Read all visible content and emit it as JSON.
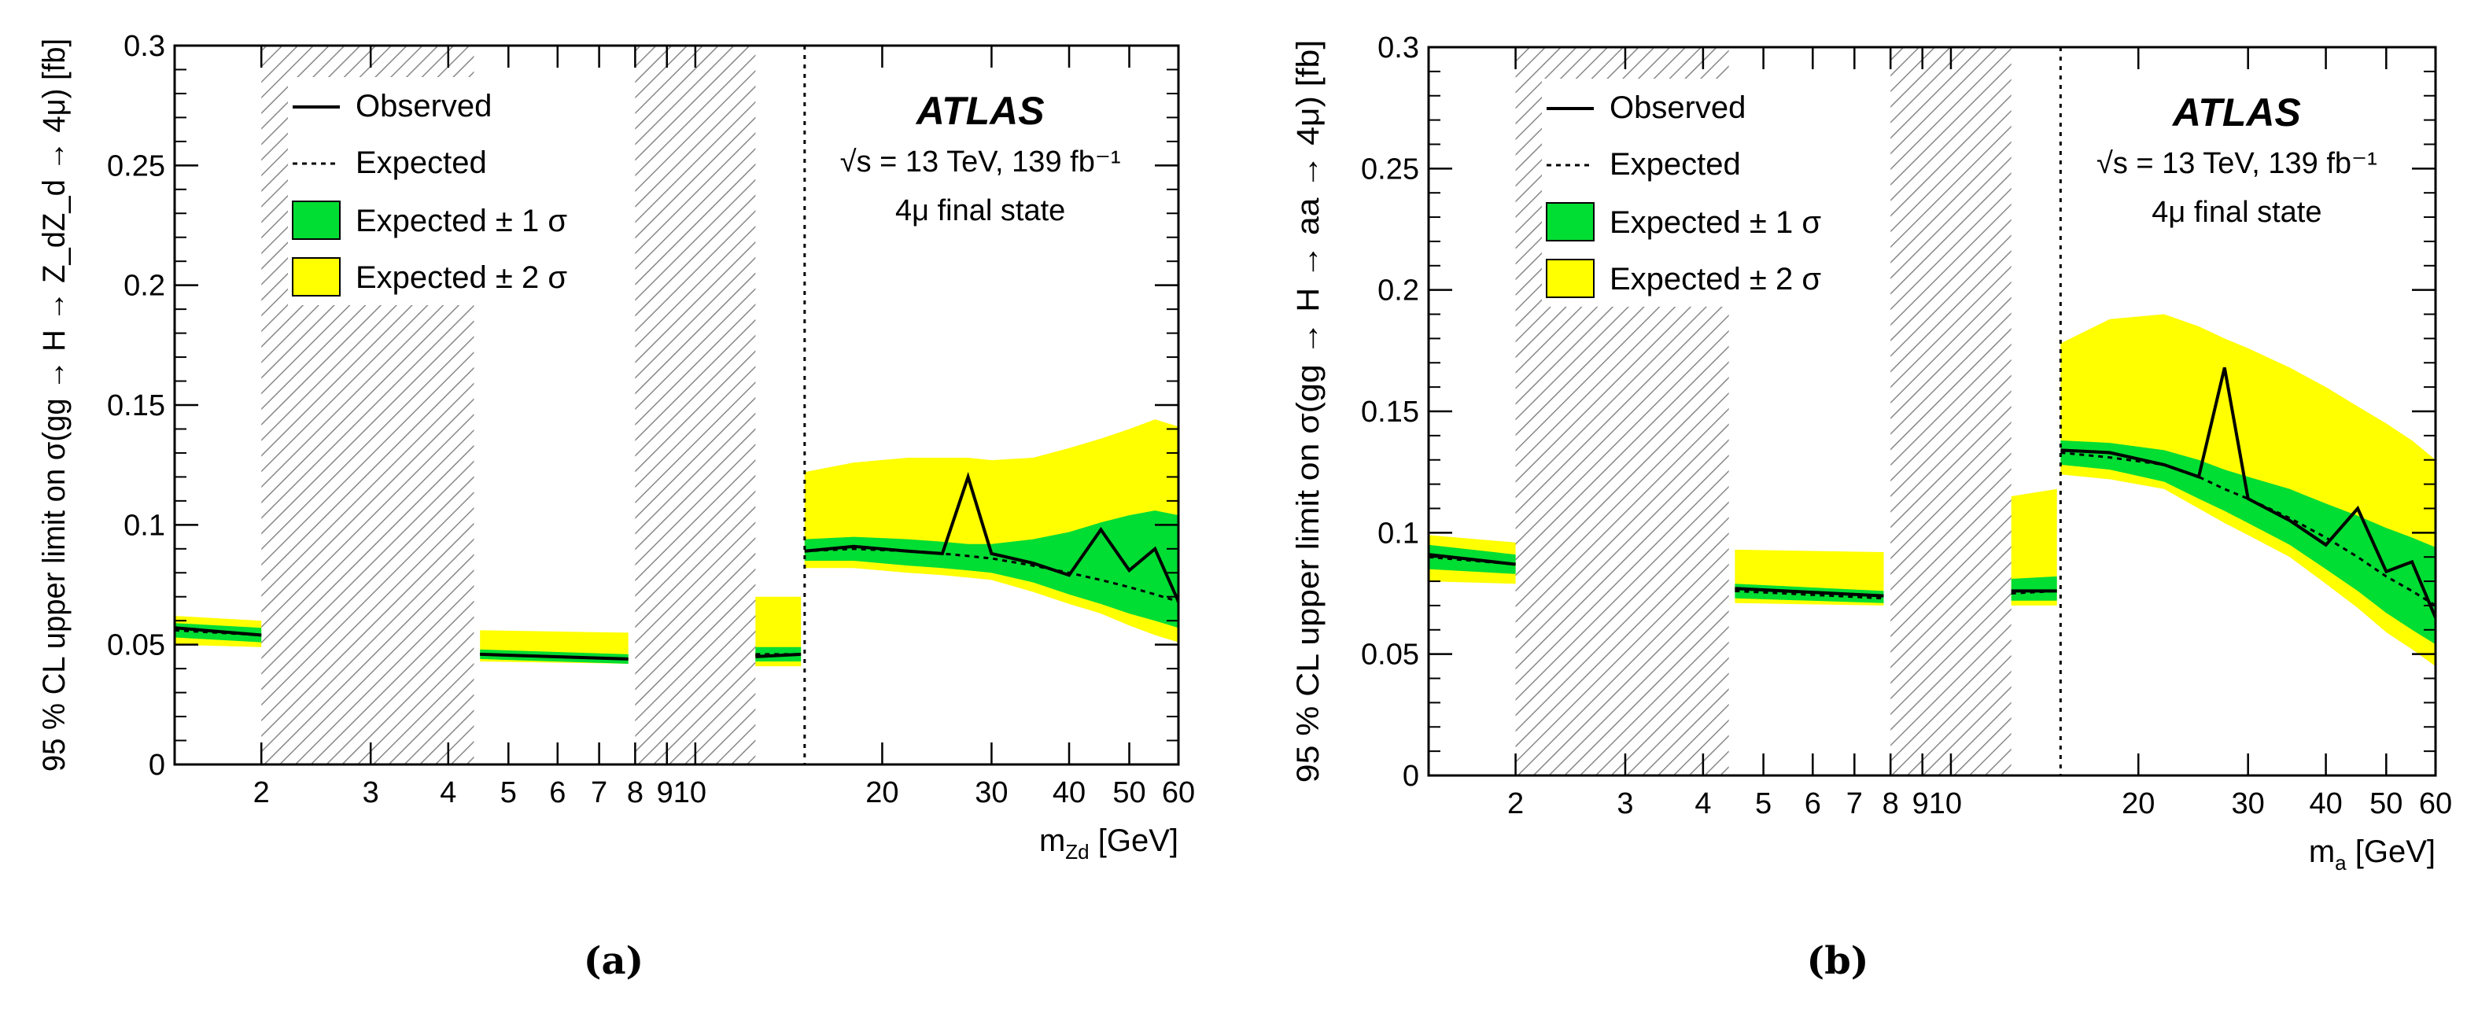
{
  "colors": {
    "band1": "#00dd33",
    "band2": "#ffff00",
    "line": "#000000",
    "hatch": "#888888"
  },
  "chart_data": [
    {
      "id": "a",
      "type": "line",
      "caption": "(a)",
      "ylabel": "95 % CL upper limit on σ(gg → H → Z_dZ_d → 4μ) [fb]",
      "xlabel": "m_Z_d [GeV]",
      "xscale": "log",
      "xlim": [
        1.45,
        60
      ],
      "ylim": [
        0,
        0.3
      ],
      "yticks": [
        0,
        0.05,
        0.1,
        0.15,
        0.2,
        0.25,
        0.3
      ],
      "ytick_labels": [
        "0",
        "0.05",
        "0.1",
        "0.15",
        "0.2",
        "0.25",
        "0.3"
      ],
      "xtick_labels": [
        {
          "v": 2,
          "t": "2"
        },
        {
          "v": 3,
          "t": "3"
        },
        {
          "v": 4,
          "t": "4"
        },
        {
          "v": 5,
          "t": "5"
        },
        {
          "v": 6,
          "t": "6"
        },
        {
          "v": 7,
          "t": "7"
        },
        {
          "v": 8,
          "t": "8"
        },
        {
          "v": 9.5,
          "t": "910"
        },
        {
          "v": 20,
          "t": "20"
        },
        {
          "v": 30,
          "t": "30"
        },
        {
          "v": 40,
          "t": "40"
        },
        {
          "v": 50,
          "t": "50"
        },
        {
          "v": 60,
          "t": "60"
        }
      ],
      "xticks_major": [
        2,
        3,
        4,
        5,
        6,
        7,
        8,
        9,
        10,
        20,
        30,
        40,
        50,
        60
      ],
      "excluded_regions": [
        [
          2,
          4.4
        ],
        [
          8,
          12.5
        ]
      ],
      "divider_x": 15,
      "legend": {
        "observed": "Observed",
        "expected": "Expected",
        "band1": "Expected ± 1 σ",
        "band2": "Expected ± 2 σ"
      },
      "annotation": {
        "experiment": "ATLAS",
        "energy": "√s = 13 TeV, 139 fb⁻¹",
        "final_state": "4μ final state"
      },
      "segments": [
        {
          "x": [
            1.45,
            2.0
          ],
          "exp": [
            0.056,
            0.054
          ],
          "obs": [
            0.057,
            0.054
          ],
          "s1": [
            [
              0.053,
              0.059
            ],
            [
              0.051,
              0.057
            ]
          ],
          "s2": [
            [
              0.05,
              0.062
            ],
            [
              0.049,
              0.06
            ]
          ]
        },
        {
          "x": [
            4.5,
            7.8
          ],
          "exp": [
            0.046,
            0.044
          ],
          "obs": [
            0.046,
            0.044
          ],
          "s1": [
            [
              0.044,
              0.048
            ],
            [
              0.042,
              0.046
            ]
          ],
          "s2": [
            [
              0.043,
              0.056
            ],
            [
              0.042,
              0.055
            ]
          ]
        },
        {
          "x": [
            12.5,
            14.8
          ],
          "exp": [
            0.046,
            0.046
          ],
          "obs": [
            0.045,
            0.046
          ],
          "s1": [
            [
              0.043,
              0.049
            ],
            [
              0.043,
              0.049
            ]
          ],
          "s2": [
            [
              0.041,
              0.07
            ],
            [
              0.041,
              0.07
            ]
          ]
        },
        {
          "x": [
            15,
            18,
            22,
            25,
            27.5,
            30,
            35,
            40,
            45,
            50,
            55,
            60
          ],
          "exp": [
            0.089,
            0.09,
            0.089,
            0.088,
            0.087,
            0.086,
            0.083,
            0.08,
            0.077,
            0.074,
            0.071,
            0.068
          ],
          "obs": [
            0.089,
            0.091,
            0.089,
            0.088,
            0.12,
            0.088,
            0.084,
            0.079,
            0.098,
            0.081,
            0.09,
            0.068
          ],
          "s1": [
            [
              0.085,
              0.094
            ],
            [
              0.085,
              0.095
            ],
            [
              0.083,
              0.094
            ],
            [
              0.082,
              0.093
            ],
            [
              0.081,
              0.092
            ],
            [
              0.08,
              0.092
            ],
            [
              0.076,
              0.094
            ],
            [
              0.071,
              0.097
            ],
            [
              0.067,
              0.101
            ],
            [
              0.063,
              0.104
            ],
            [
              0.06,
              0.106
            ],
            [
              0.057,
              0.104
            ]
          ],
          "s2": [
            [
              0.082,
              0.122
            ],
            [
              0.082,
              0.126
            ],
            [
              0.08,
              0.128
            ],
            [
              0.079,
              0.128
            ],
            [
              0.078,
              0.128
            ],
            [
              0.077,
              0.127
            ],
            [
              0.072,
              0.128
            ],
            [
              0.067,
              0.132
            ],
            [
              0.063,
              0.136
            ],
            [
              0.058,
              0.14
            ],
            [
              0.054,
              0.144
            ],
            [
              0.051,
              0.141
            ]
          ]
        }
      ]
    },
    {
      "id": "b",
      "type": "line",
      "caption": "(b)",
      "ylabel": "95 % CL upper limit on σ(gg → H → aa → 4μ) [fb]",
      "xlabel": "m_a [GeV]",
      "xscale": "log",
      "xlim": [
        1.45,
        60
      ],
      "ylim": [
        0,
        0.3
      ],
      "yticks": [
        0,
        0.05,
        0.1,
        0.15,
        0.2,
        0.25,
        0.3
      ],
      "ytick_labels": [
        "0",
        "0.05",
        "0.1",
        "0.15",
        "0.2",
        "0.25",
        "0.3"
      ],
      "xtick_labels": [
        {
          "v": 2,
          "t": "2"
        },
        {
          "v": 3,
          "t": "3"
        },
        {
          "v": 4,
          "t": "4"
        },
        {
          "v": 5,
          "t": "5"
        },
        {
          "v": 6,
          "t": "6"
        },
        {
          "v": 7,
          "t": "7"
        },
        {
          "v": 8,
          "t": "8"
        },
        {
          "v": 9.5,
          "t": "910"
        },
        {
          "v": 20,
          "t": "20"
        },
        {
          "v": 30,
          "t": "30"
        },
        {
          "v": 40,
          "t": "40"
        },
        {
          "v": 50,
          "t": "50"
        },
        {
          "v": 60,
          "t": "60"
        }
      ],
      "xticks_major": [
        2,
        3,
        4,
        5,
        6,
        7,
        8,
        9,
        10,
        20,
        30,
        40,
        50,
        60
      ],
      "excluded_regions": [
        [
          2,
          4.4
        ],
        [
          8,
          12.5
        ]
      ],
      "divider_x": 15,
      "legend": {
        "observed": "Observed",
        "expected": "Expected",
        "band1": "Expected ± 1 σ",
        "band2": "Expected ± 2 σ"
      },
      "annotation": {
        "experiment": "ATLAS",
        "energy": "√s = 13 TeV, 139 fb⁻¹",
        "final_state": "4μ final state"
      },
      "segments": [
        {
          "x": [
            1.45,
            2.0
          ],
          "exp": [
            0.09,
            0.087
          ],
          "obs": [
            0.091,
            0.087
          ],
          "s1": [
            [
              0.085,
              0.095
            ],
            [
              0.083,
              0.091
            ]
          ],
          "s2": [
            [
              0.08,
              0.099
            ],
            [
              0.079,
              0.096
            ]
          ]
        },
        {
          "x": [
            4.5,
            7.8
          ],
          "exp": [
            0.076,
            0.073
          ],
          "obs": [
            0.077,
            0.074
          ],
          "s1": [
            [
              0.073,
              0.079
            ],
            [
              0.071,
              0.076
            ]
          ],
          "s2": [
            [
              0.071,
              0.093
            ],
            [
              0.07,
              0.092
            ]
          ]
        },
        {
          "x": [
            12.5,
            14.8
          ],
          "exp": [
            0.075,
            0.076
          ],
          "obs": [
            0.076,
            0.076
          ],
          "s1": [
            [
              0.072,
              0.081
            ],
            [
              0.072,
              0.082
            ]
          ],
          "s2": [
            [
              0.07,
              0.115
            ],
            [
              0.07,
              0.118
            ]
          ]
        },
        {
          "x": [
            15,
            18,
            22,
            25,
            27.5,
            30,
            35,
            40,
            45,
            50,
            55,
            60
          ],
          "exp": [
            0.133,
            0.131,
            0.128,
            0.123,
            0.118,
            0.114,
            0.106,
            0.098,
            0.09,
            0.082,
            0.076,
            0.07
          ],
          "obs": [
            0.134,
            0.133,
            0.128,
            0.123,
            0.168,
            0.114,
            0.105,
            0.095,
            0.11,
            0.084,
            0.088,
            0.065
          ],
          "s1": [
            [
              0.128,
              0.138
            ],
            [
              0.126,
              0.137
            ],
            [
              0.121,
              0.134
            ],
            [
              0.114,
              0.13
            ],
            [
              0.109,
              0.126
            ],
            [
              0.104,
              0.123
            ],
            [
              0.095,
              0.118
            ],
            [
              0.085,
              0.112
            ],
            [
              0.076,
              0.107
            ],
            [
              0.067,
              0.102
            ],
            [
              0.06,
              0.098
            ],
            [
              0.054,
              0.094
            ]
          ],
          "s2": [
            [
              0.124,
              0.178
            ],
            [
              0.122,
              0.188
            ],
            [
              0.118,
              0.19
            ],
            [
              0.11,
              0.185
            ],
            [
              0.104,
              0.18
            ],
            [
              0.099,
              0.176
            ],
            [
              0.09,
              0.168
            ],
            [
              0.079,
              0.16
            ],
            [
              0.069,
              0.152
            ],
            [
              0.059,
              0.145
            ],
            [
              0.052,
              0.138
            ],
            [
              0.045,
              0.13
            ]
          ]
        }
      ]
    }
  ]
}
